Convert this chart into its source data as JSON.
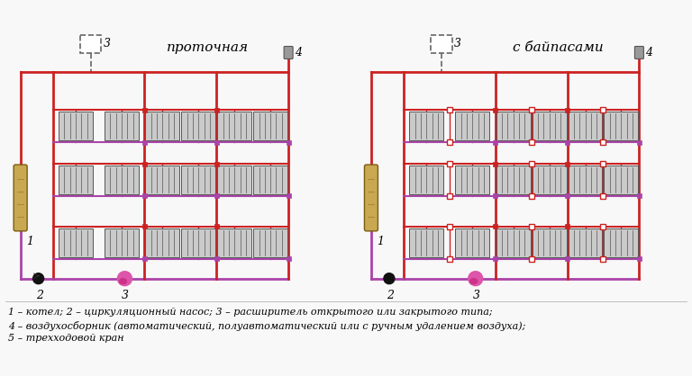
{
  "bg_color": "#f8f8f8",
  "pipe_red": "#cc2222",
  "pipe_purple": "#aa44aa",
  "boiler_color": "#c8a850",
  "text_color": "#000000",
  "dashed_color": "#666666",
  "valve_red_fill": "#cc2222",
  "valve_purple_fill": "#aa44aa",
  "title1": "проточная",
  "title2": "с байпасами",
  "legend_line1": "1 – котел; 2 – циркуляционный насос; 3 – расширитель открытого или закрытого типа;",
  "legend_line2": "4 – воздухосборник (автоматический, полуавтоматический или с ручным удалением воздуха);",
  "legend_line3": "5 – трехходовой кран"
}
